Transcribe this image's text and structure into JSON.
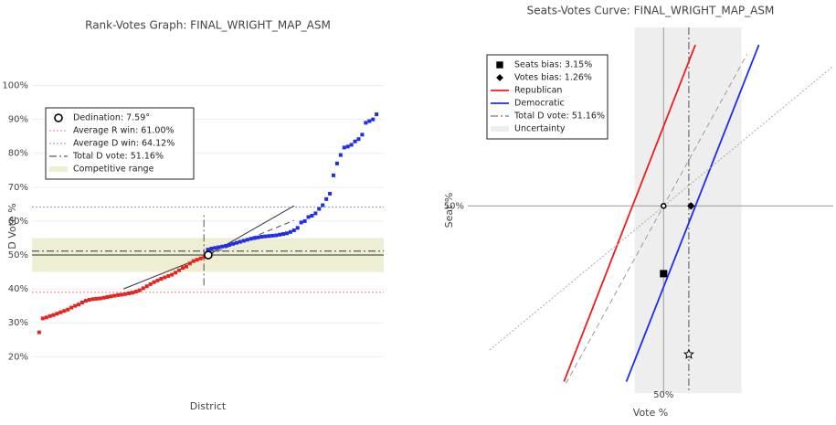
{
  "chart_data": [
    {
      "type": "scatter",
      "title": "Rank-Votes Graph: FINAL_WRIGHT_MAP_ASM",
      "xlabel": "District",
      "ylabel": "D Vote %",
      "xlim": [
        -2,
        96
      ],
      "ylim": [
        12,
        105
      ],
      "yticks": [
        {
          "value": 20,
          "label": "20%"
        },
        {
          "value": 30,
          "label": "30%"
        },
        {
          "value": 40,
          "label": "40%"
        },
        {
          "value": 50,
          "label": "50%"
        },
        {
          "value": 60,
          "label": "60%"
        },
        {
          "value": 70,
          "label": "70%"
        },
        {
          "value": 80,
          "label": "80%"
        },
        {
          "value": 90,
          "label": "90%"
        },
        {
          "value": 100,
          "label": "100%"
        }
      ],
      "grid": true,
      "legend": "upper left",
      "series": [
        {
          "color": "#e8231f",
          "values": [
            27.2,
            31.3,
            31.6,
            32.0,
            32.3,
            32.7,
            33.1,
            33.5,
            33.9,
            34.5,
            35.0,
            35.4,
            36.0,
            36.5,
            36.8,
            37.0,
            37.1,
            37.2,
            37.4,
            37.6,
            37.8,
            38.0,
            38.2,
            38.3,
            38.5,
            38.7,
            38.9,
            39.2,
            39.6,
            40.2,
            40.8,
            41.4,
            42.0,
            42.5,
            43.0,
            43.4,
            43.8,
            44.2,
            44.8,
            45.5,
            46.2,
            46.6,
            47.5,
            48.2,
            48.6,
            49.0,
            49.4
          ]
        },
        {
          "color": "#1f2ee8",
          "values": [
            51.6,
            51.9,
            52.1,
            52.3,
            52.5,
            52.7,
            53.0,
            53.3,
            53.6,
            53.9,
            54.2,
            54.5,
            54.8,
            55.0,
            55.2,
            55.4,
            55.5,
            55.6,
            55.7,
            55.8,
            56.0,
            56.2,
            56.4,
            56.8,
            57.3,
            58.0,
            59.6,
            60.0,
            61.2,
            61.6,
            62.3,
            63.6,
            64.7,
            66.5,
            68.1,
            73.5,
            77.0,
            79.5,
            81.7,
            82.0,
            82.5,
            83.5,
            84.2,
            85.5,
            89.0,
            89.5,
            90.0,
            91.5
          ]
        }
      ],
      "band": {
        "y": [
          45,
          55
        ],
        "color": "#eeeed2",
        "label": "Competitive range"
      },
      "hlines": [
        {
          "y": 39.0,
          "color": "#f08080",
          "dash": "dotted",
          "label": "Average R win: 61.00%"
        },
        {
          "y": 64.12,
          "color": "#8a8af0",
          "dash": "dotted",
          "label": "Average D win: 64.12%"
        },
        {
          "y": 51.16,
          "color": "#333333",
          "dash": "dashdot",
          "label": "Total D vote: 51.16%"
        },
        {
          "y": 50,
          "color": "#333333",
          "dash": "solid"
        }
      ],
      "vlines": [
        {
          "x": 45.9,
          "y": [
            41,
            62
          ],
          "color": "#555555",
          "dash": "dashdot"
        }
      ],
      "segments": [
        {
          "x": [
            23.5,
            47.1,
            71.0
          ],
          "values": [
            40,
            50,
            64.5
          ],
          "color": "#333333",
          "dash": "solid"
        },
        {
          "x": [
            47.1,
            71.0
          ],
          "values": [
            50,
            60.2
          ],
          "color": "#555555",
          "dash": "dashed"
        }
      ],
      "markers": [
        {
          "x": 47.1,
          "y": 50,
          "symbol": "circle",
          "label": "Dedination: 7.59°"
        }
      ]
    },
    {
      "type": "line",
      "title": "Seats-Votes Curve: FINAL_WRIGHT_MAP_ASM",
      "xlabel": "Vote %",
      "ylabel": "Seat %",
      "xlim": [
        41,
        57.8
      ],
      "ylim": [
        41.3,
        58.3
      ],
      "xticks": [
        {
          "value": 50,
          "label": "50%"
        }
      ],
      "yticks": [
        {
          "value": 50,
          "label": "50%"
        }
      ],
      "grid": true,
      "legend": "upper left",
      "series": [
        {
          "name": "Republican",
          "color": "#f01c1c",
          "x": [
            45.42,
            51.46
          ],
          "values": [
            41.83,
            57.49
          ]
        },
        {
          "name": "Democratic",
          "color": "#1c2cf0",
          "x": [
            48.29,
            54.38
          ],
          "values": [
            41.83,
            57.49
          ]
        },
        {
          "color": "#999999",
          "dash": "dashed",
          "x": [
            45.51,
            53.84
          ],
          "values": [
            41.74,
            57.06
          ]
        },
        {
          "color": "#aaaaaa",
          "dash": "dotted",
          "x": [
            42.0,
            57.8
          ],
          "values": [
            43.3,
            56.5
          ]
        }
      ],
      "band": {
        "x": [
          48.67,
          53.58
        ],
        "color": "#eeeeee",
        "label": "Uncertainty"
      },
      "vlines": [
        {
          "x": 51.16,
          "color": "#555555",
          "dash": "dashdot",
          "label": "Total D vote: 51.16%"
        }
      ],
      "markers": [
        {
          "x": 50,
          "y": 46.85,
          "symbol": "square",
          "label": "Seats bias: 3.15%"
        },
        {
          "x": 51.26,
          "y": 50,
          "symbol": "diamond",
          "label": "Votes bias: 1.26%"
        },
        {
          "x": 50,
          "y": 50,
          "symbol": "circle"
        },
        {
          "x": 51.16,
          "y": 43.1,
          "symbol": "star"
        }
      ]
    }
  ]
}
